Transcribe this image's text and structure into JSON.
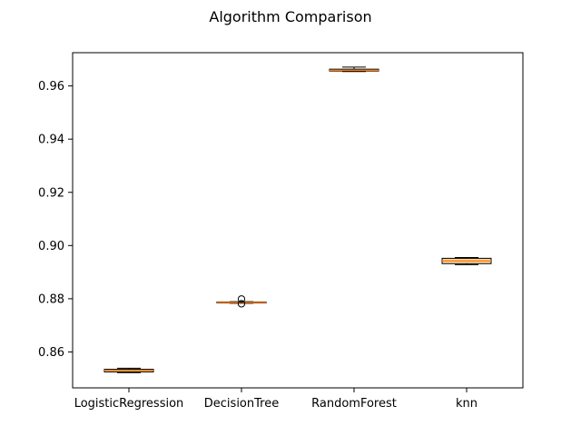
{
  "chart_data": {
    "type": "box",
    "title": "Algorithm Comparison",
    "xlabel": "",
    "ylabel": "",
    "categories": [
      "LogisticRegression",
      "DecisionTree",
      "RandomForest",
      "knn"
    ],
    "ylim": [
      0.8465,
      0.9725
    ],
    "yticks": [
      0.86,
      0.88,
      0.9,
      0.92,
      0.94,
      0.96
    ],
    "ytick_labels": [
      "0.86",
      "0.88",
      "0.90",
      "0.92",
      "0.94",
      "0.96"
    ],
    "grid": false,
    "legend": "none",
    "colors": {
      "box_fill": "#fbd9a8",
      "median": "#ff7f0e",
      "box_stroke": "#000000"
    },
    "boxes": [
      {
        "category": "LogisticRegression",
        "whisker_low": 0.8522,
        "q1": 0.8525,
        "median": 0.8531,
        "q3": 0.8535,
        "whisker_high": 0.8539,
        "fliers": []
      },
      {
        "category": "DecisionTree",
        "whisker_low": 0.8783,
        "q1": 0.8784,
        "median": 0.8786,
        "q3": 0.8788,
        "whisker_high": 0.8789,
        "fliers": [
          0.8799,
          0.8781
        ]
      },
      {
        "category": "RandomForest",
        "whisker_low": 0.9654,
        "q1": 0.9656,
        "median": 0.9659,
        "q3": 0.9663,
        "whisker_high": 0.9671,
        "fliers": []
      },
      {
        "category": "knn",
        "whisker_low": 0.8928,
        "q1": 0.8932,
        "median": 0.8942,
        "q3": 0.8952,
        "whisker_high": 0.8955,
        "fliers": []
      }
    ]
  }
}
